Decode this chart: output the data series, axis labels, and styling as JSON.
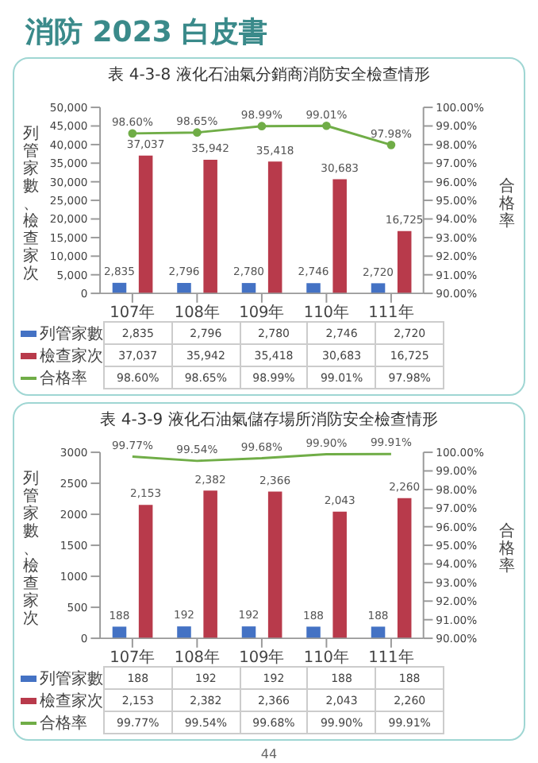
{
  "chart_data": [
    {
      "type": "bar",
      "title": "表 4-3-8 液化石油氣分銷商消防安全檢查情形",
      "annotations": [
        "消防 2023 白皮書"
      ],
      "ylabel": "列管家數、檢查家次",
      "y2label": "合格率",
      "categories": [
        "107年",
        "108年",
        "109年",
        "110年",
        "111年"
      ],
      "series": [
        {
          "name": "列管家數",
          "color": "#4472c4",
          "values": [
            2835,
            2796,
            2780,
            2746,
            2720
          ],
          "value_labels": [
            "2,835",
            "2,796",
            "2,780",
            "2,746",
            "2,720"
          ]
        },
        {
          "name": "檢查家次",
          "color": "#b83a4b",
          "values": [
            37037,
            35942,
            35418,
            30683,
            16725
          ],
          "value_labels": [
            "37,037",
            "35,942",
            "35,418",
            "30,683",
            "16,725"
          ]
        },
        {
          "name": "合格率",
          "type": "line",
          "axis": "y2",
          "color": "#70ad47",
          "values": [
            98.6,
            98.65,
            98.99,
            99.01,
            97.98
          ],
          "value_labels": [
            "98.60%",
            "98.65%",
            "98.99%",
            "99.01%",
            "97.98%"
          ]
        }
      ],
      "ylim": [
        0,
        50000
      ],
      "yticks": [
        0,
        {
          "value": 5000,
          "label": "5,000"
        },
        {
          "value": 10000,
          "label": "10,000"
        },
        {
          "value": 15000,
          "label": "15,000"
        },
        {
          "value": 20000,
          "label": "20,000"
        },
        {
          "value": 25000,
          "label": "25,000"
        },
        {
          "value": 30000,
          "label": "30,000"
        },
        {
          "value": 35000,
          "label": "35,000"
        },
        {
          "value": 40000,
          "label": "40,000"
        },
        {
          "value": 45000,
          "label": "45,000"
        },
        {
          "value": 50000,
          "label": "50,000"
        }
      ],
      "y2lim": [
        90,
        100
      ],
      "y2ticks": [
        {
          "value": 90,
          "label": "90.00%"
        },
        {
          "value": 91,
          "label": "91.00%"
        },
        {
          "value": 92,
          "label": "92.00%"
        },
        {
          "value": 93,
          "label": "93.00%"
        },
        {
          "value": 94,
          "label": "94.00%"
        },
        {
          "value": 95,
          "label": "95.00%"
        },
        {
          "value": 96,
          "label": "96.00%"
        },
        {
          "value": 97,
          "label": "97.00%"
        },
        {
          "value": 98,
          "label": "98.00%"
        },
        {
          "value": 99,
          "label": "99.00%"
        },
        {
          "value": 100,
          "label": "100.00%"
        }
      ],
      "marker": "circle",
      "legend": "bottom"
    },
    {
      "type": "bar",
      "title": "表 4-3-9 液化石油氣儲存場所消防安全檢查情形",
      "annotations": [
        "44"
      ],
      "ylabel": "列管家數、檢查家次",
      "y2label": "合格率",
      "categories": [
        "107年",
        "108年",
        "109年",
        "110年",
        "111年"
      ],
      "series": [
        {
          "name": "列管家數",
          "color": "#4472c4",
          "values": [
            188,
            192,
            192,
            188,
            188
          ],
          "value_labels": [
            "188",
            "192",
            "192",
            "188",
            "188"
          ]
        },
        {
          "name": "檢查家次",
          "color": "#b83a4b",
          "values": [
            2153,
            2382,
            2366,
            2043,
            2260
          ],
          "value_labels": [
            "2,153",
            "2,382",
            "2,366",
            "2,043",
            "2,260"
          ]
        },
        {
          "name": "合格率",
          "type": "line",
          "axis": "y2",
          "color": "#70ad47",
          "values": [
            99.77,
            99.54,
            99.68,
            99.9,
            99.91
          ],
          "value_labels": [
            "99.77%",
            "99.54%",
            "99.68%",
            "99.90%",
            "99.91%"
          ]
        }
      ],
      "ylim": [
        0,
        3000
      ],
      "yticks": [
        0,
        500,
        1000,
        1500,
        2000,
        2500,
        3000
      ],
      "y2lim": [
        90,
        100
      ],
      "y2ticks": [
        {
          "value": 90,
          "label": "90.00%"
        },
        {
          "value": 91,
          "label": "91.00%"
        },
        {
          "value": 92,
          "label": "92.00%"
        },
        {
          "value": 93,
          "label": "93.00%"
        },
        {
          "value": 94,
          "label": "94.00%"
        },
        {
          "value": 95,
          "label": "95.00%"
        },
        {
          "value": 96,
          "label": "96.00%"
        },
        {
          "value": 97,
          "label": "97.00%"
        },
        {
          "value": 98,
          "label": "98.00%"
        },
        {
          "value": 99,
          "label": "99.00%"
        },
        {
          "value": 100,
          "label": "100.00%"
        }
      ],
      "marker": "none",
      "legend": "bottom"
    }
  ]
}
